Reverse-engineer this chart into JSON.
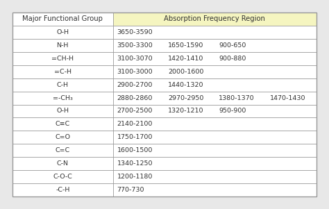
{
  "title_col1": "Major Functional Group",
  "title_col2": "Absorption Frequency Region",
  "header_bg": "#f5f5c0",
  "fig_bg": "#e8e8e8",
  "table_bg": "#ffffff",
  "border_color": "#999999",
  "text_color": "#333333",
  "rows": [
    [
      "O-H",
      "3650-3590",
      "",
      "",
      ""
    ],
    [
      "N-H",
      "3500-3300",
      "1650-1590",
      "900-650",
      ""
    ],
    [
      "=CH-H",
      "3100-3070",
      "1420-1410",
      "900-880",
      ""
    ],
    [
      "=C-H",
      "3100-3000",
      "2000-1600",
      "",
      ""
    ],
    [
      "C-H",
      "2900-2700",
      "1440-1320",
      "",
      ""
    ],
    [
      "=-CH₃",
      "2880-2860",
      "2970-2950",
      "1380-1370",
      "1470-1430"
    ],
    [
      "O-H",
      "2700-2500",
      "1320-1210",
      "950-900",
      ""
    ],
    [
      "C≡C",
      "2140-2100",
      "",
      "",
      ""
    ],
    [
      "C=O",
      "1750-1700",
      "",
      "",
      ""
    ],
    [
      "C=C",
      "1600-1500",
      "",
      "",
      ""
    ],
    [
      "C-N",
      "1340-1250",
      "",
      "",
      ""
    ],
    [
      "C-O-C",
      "1200-1180",
      "",
      "",
      ""
    ],
    [
      "-C-H",
      "770-730",
      "",
      "",
      ""
    ]
  ],
  "fig_width": 4.74,
  "fig_height": 3.01,
  "font_size": 6.8,
  "header_font_size": 7.2
}
